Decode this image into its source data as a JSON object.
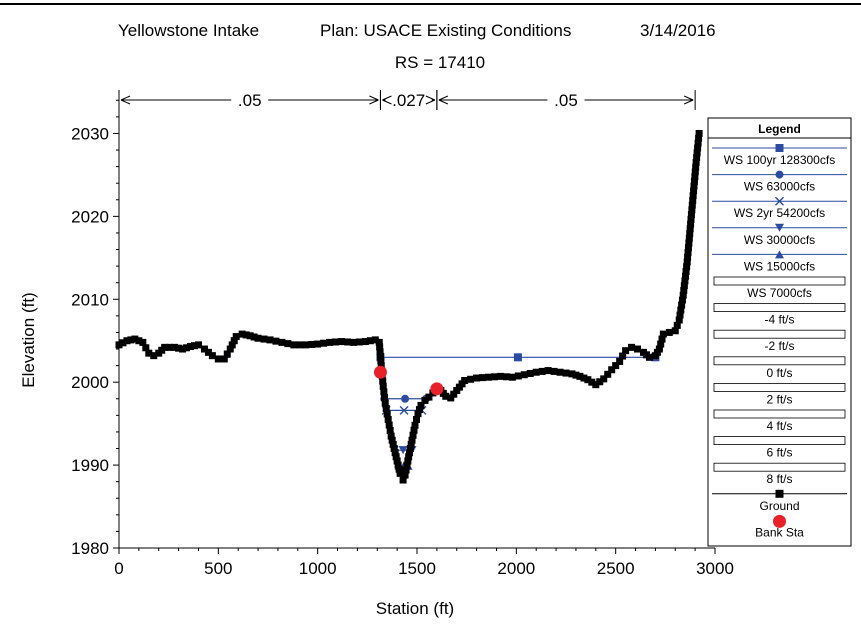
{
  "header": {
    "project": "Yellowstone Intake",
    "plan": "Plan: USACE Existing Conditions",
    "date": "3/14/2016",
    "subtitle": "RS = 17410"
  },
  "mannings": [
    {
      "label": ".05",
      "from": 0,
      "to": 1316
    },
    {
      "label": ".027",
      "from": 1316,
      "to": 1600
    },
    {
      "label": ".05",
      "from": 1600,
      "to": 2900
    }
  ],
  "legend": {
    "title": "Legend",
    "entries": [
      {
        "label": "WS 100yr 128300cfs",
        "kind": "line-marker",
        "marker": "square",
        "color": "#2b4ba0"
      },
      {
        "label": "WS 63000cfs",
        "kind": "line-marker",
        "marker": "circle",
        "color": "#2b4ba0"
      },
      {
        "label": "WS 2yr 54200cfs",
        "kind": "line-marker",
        "marker": "x",
        "color": "#2b4ba0"
      },
      {
        "label": "WS 30000cfs",
        "kind": "line-marker",
        "marker": "triangle-down",
        "color": "#2b4ba0"
      },
      {
        "label": "WS 15000cfs",
        "kind": "line-marker",
        "marker": "triangle-up",
        "color": "#2b4ba0"
      },
      {
        "label": "WS 7000cfs",
        "kind": "box",
        "marker": "none",
        "color": "#000000"
      },
      {
        "label": "-4 ft/s",
        "kind": "box",
        "marker": "none",
        "color": "#000000"
      },
      {
        "label": "-2 ft/s",
        "kind": "box",
        "marker": "none",
        "color": "#000000"
      },
      {
        "label": "0 ft/s",
        "kind": "box",
        "marker": "none",
        "color": "#000000"
      },
      {
        "label": "2 ft/s",
        "kind": "box",
        "marker": "none",
        "color": "#000000"
      },
      {
        "label": "4 ft/s",
        "kind": "box",
        "marker": "none",
        "color": "#000000"
      },
      {
        "label": "6 ft/s",
        "kind": "box",
        "marker": "none",
        "color": "#000000"
      },
      {
        "label": "8 ft/s",
        "kind": "box",
        "marker": "none",
        "color": "#000000"
      },
      {
        "label": "Ground",
        "kind": "line-marker",
        "marker": "square",
        "color": "#000000"
      },
      {
        "label": "Bank Sta",
        "kind": "marker",
        "marker": "big-circle",
        "color": "#e8202a"
      }
    ]
  },
  "chart_data": {
    "type": "line",
    "title": "Yellowstone Intake      Plan: USACE Existing Conditions      3/14/2016",
    "subtitle": "RS = 17410",
    "xlabel": "Station (ft)",
    "ylabel": "Elevation (ft)",
    "xlim": [
      0,
      3000
    ],
    "ylim": [
      1980,
      2035
    ],
    "xticks": [
      0,
      500,
      1000,
      1500,
      2000,
      2500,
      3000
    ],
    "yticks": [
      1980,
      1990,
      2000,
      2010,
      2020,
      2030
    ],
    "grid": false,
    "legend_position": "right",
    "ground": {
      "name": "Ground",
      "points": [
        [
          0,
          2004.5
        ],
        [
          40,
          2005
        ],
        [
          80,
          2005.2
        ],
        [
          120,
          2004.8
        ],
        [
          150,
          2003.5
        ],
        [
          175,
          2003.2
        ],
        [
          200,
          2003.5
        ],
        [
          230,
          2004.2
        ],
        [
          280,
          2004.2
        ],
        [
          320,
          2004.0
        ],
        [
          360,
          2004.3
        ],
        [
          400,
          2004.5
        ],
        [
          430,
          2004.0
        ],
        [
          470,
          2003.2
        ],
        [
          500,
          2002.8
        ],
        [
          530,
          2002.8
        ],
        [
          560,
          2004.0
        ],
        [
          590,
          2005.5
        ],
        [
          620,
          2005.8
        ],
        [
          660,
          2005.6
        ],
        [
          700,
          2005.3
        ],
        [
          760,
          2005.1
        ],
        [
          820,
          2004.8
        ],
        [
          880,
          2004.5
        ],
        [
          940,
          2004.5
        ],
        [
          1000,
          2004.6
        ],
        [
          1060,
          2004.8
        ],
        [
          1120,
          2004.9
        ],
        [
          1180,
          2004.8
        ],
        [
          1240,
          2004.9
        ],
        [
          1290,
          2005.1
        ],
        [
          1310,
          2004.8
        ],
        [
          1320,
          2002.0
        ],
        [
          1330,
          1999.5
        ],
        [
          1340,
          1997.5
        ],
        [
          1355,
          1995.5
        ],
        [
          1370,
          1993.5
        ],
        [
          1385,
          1992.0
        ],
        [
          1400,
          1990.5
        ],
        [
          1415,
          1989.0
        ],
        [
          1430,
          1988.2
        ],
        [
          1440,
          1988.8
        ],
        [
          1450,
          1990.0
        ],
        [
          1462,
          1991.5
        ],
        [
          1475,
          1993.0
        ],
        [
          1490,
          1994.8
        ],
        [
          1505,
          1996.2
        ],
        [
          1520,
          1997.2
        ],
        [
          1540,
          1997.8
        ],
        [
          1560,
          1998.2
        ],
        [
          1580,
          1998.7
        ],
        [
          1600,
          1999.2
        ],
        [
          1620,
          1999.0
        ],
        [
          1645,
          1998.3
        ],
        [
          1670,
          1998.1
        ],
        [
          1700,
          1999.0
        ],
        [
          1740,
          2000.2
        ],
        [
          1800,
          2000.5
        ],
        [
          1860,
          2000.6
        ],
        [
          1920,
          2000.7
        ],
        [
          1980,
          2000.6
        ],
        [
          2040,
          2000.9
        ],
        [
          2100,
          2001.2
        ],
        [
          2160,
          2001.4
        ],
        [
          2220,
          2001.2
        ],
        [
          2280,
          2001.0
        ],
        [
          2320,
          2000.7
        ],
        [
          2360,
          2000.3
        ],
        [
          2400,
          1999.7
        ],
        [
          2440,
          2000.4
        ],
        [
          2480,
          2001.5
        ],
        [
          2520,
          2002.5
        ],
        [
          2550,
          2003.8
        ],
        [
          2580,
          2004.2
        ],
        [
          2610,
          2004.0
        ],
        [
          2640,
          2003.6
        ],
        [
          2670,
          2003.0
        ],
        [
          2700,
          2003.2
        ],
        [
          2720,
          2004.0
        ],
        [
          2740,
          2005.8
        ],
        [
          2770,
          2006.0
        ],
        [
          2800,
          2006.2
        ],
        [
          2820,
          2007.5
        ],
        [
          2840,
          2010.5
        ],
        [
          2860,
          2014.5
        ],
        [
          2875,
          2018.5
        ],
        [
          2890,
          2022.5
        ],
        [
          2905,
          2026.5
        ],
        [
          2920,
          2030.0
        ]
      ]
    },
    "water_surfaces": [
      {
        "name": "WS 100yr 128300cfs",
        "elevation": 2003.0,
        "x": [
          1316,
          2700
        ],
        "marker": "square",
        "extra_segments": [
          [
            500,
            560
          ]
        ]
      },
      {
        "name": "WS 63000cfs",
        "elevation": 1998.0,
        "x": [
          1335,
          1545
        ],
        "marker": "circle"
      },
      {
        "name": "WS 2yr 54200cfs",
        "elevation": 1996.6,
        "x": [
          1345,
          1525
        ],
        "marker": "x"
      },
      {
        "name": "WS 30000cfs",
        "elevation": 1991.8,
        "x": [
          1385,
          1475
        ],
        "marker": "triangle-down"
      },
      {
        "name": "WS 15000cfs",
        "elevation": 1989.9,
        "x": [
          1410,
          1455
        ],
        "marker": "triangle-up"
      }
    ],
    "bank_stations": [
      [
        1316,
        2001.2
      ],
      [
        1600,
        1999.2
      ]
    ]
  }
}
